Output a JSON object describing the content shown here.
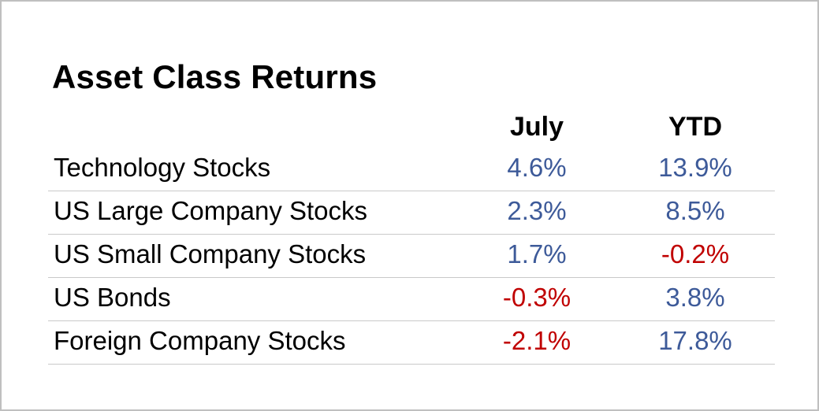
{
  "chart_data": {
    "type": "table",
    "title": "Asset Class Returns",
    "columns": [
      "July",
      "YTD"
    ],
    "rows": [
      {
        "label": "Technology Stocks",
        "values": [
          4.6,
          13.9
        ],
        "display": [
          "4.6%",
          "13.9%"
        ]
      },
      {
        "label": "US Large Company Stocks",
        "values": [
          2.3,
          8.5
        ],
        "display": [
          "2.3%",
          "8.5%"
        ]
      },
      {
        "label": "US Small Company Stocks",
        "values": [
          1.7,
          -0.2
        ],
        "display": [
          "1.7%",
          "-0.2%"
        ]
      },
      {
        "label": "US Bonds",
        "values": [
          -0.3,
          3.8
        ],
        "display": [
          "-0.3%",
          "3.8%"
        ]
      },
      {
        "label": "Foreign Company Stocks",
        "values": [
          -2.1,
          17.8
        ],
        "display": [
          "-2.1%",
          "17.8%"
        ]
      }
    ],
    "unit": "%"
  },
  "colors": {
    "positive": "#3d5a99",
    "negative": "#c00000",
    "text": "#000000",
    "divider": "#c9c9c9",
    "frame": "#bfbfbf"
  }
}
